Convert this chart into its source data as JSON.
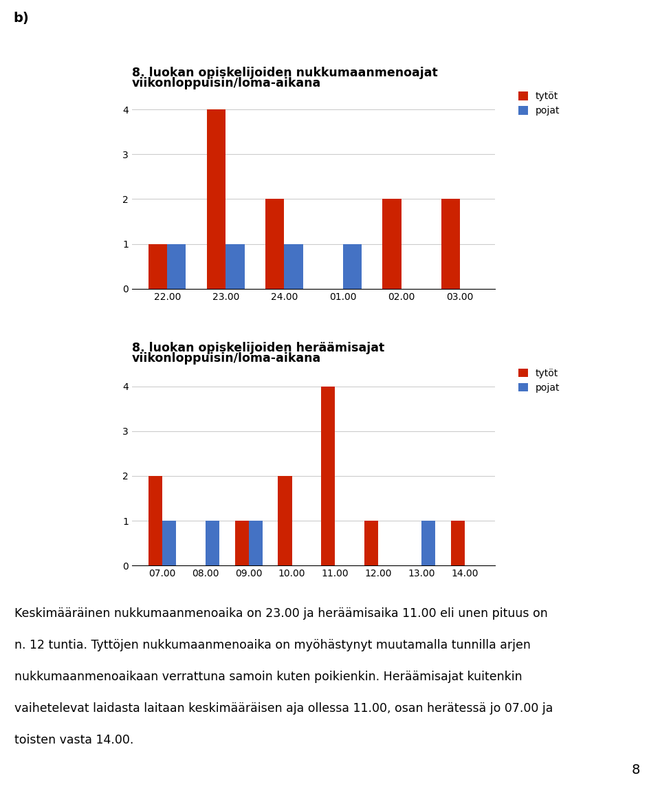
{
  "chart1": {
    "title_line1": "8. luokan opiskelijoiden nukkumaanmenoajat",
    "title_line2": "viikonloppuisin/loma-aikana",
    "categories": [
      "22.00",
      "23.00",
      "24.00",
      "01.00",
      "02.00",
      "03.00"
    ],
    "tytot": [
      1,
      4,
      2,
      0,
      2,
      2
    ],
    "pojat": [
      1,
      1,
      1,
      1,
      0,
      0
    ],
    "ylim": [
      0,
      4.5
    ],
    "yticks": [
      0,
      1,
      2,
      3,
      4
    ]
  },
  "chart2": {
    "title_line1": "8. luokan opiskelijoiden heräämisajat",
    "title_line2": "viikonloppuisin/loma-aikana",
    "categories": [
      "07.00",
      "08.00",
      "09.00",
      "10.00",
      "11.00",
      "12.00",
      "13.00",
      "14.00"
    ],
    "tytot": [
      2,
      0,
      1,
      2,
      4,
      1,
      0,
      1
    ],
    "pojat": [
      1,
      1,
      1,
      0,
      0,
      0,
      1,
      0
    ],
    "ylim": [
      0,
      4.5
    ],
    "yticks": [
      0,
      1,
      2,
      3,
      4
    ]
  },
  "text_lines": [
    "Keskimääräinen nukkumaanmenoaika on 23.00 ja heräämisaika 11.00 eli unen pituus on",
    "n. 12 tuntia. Tyttöjen nukkumaanmenoaika on myöhästynyt muutamalla tunnilla arjen",
    "nukkumaanmenoaikaan verrattuna samoin kuten poikienkin. Heräämisajat kuitenkin",
    "vaihetelevat laidasta laitaan keskimääräisen aja ollessa 11.00, osan herätessä jo 07.00 ja",
    "toisten vasta 14.00."
  ],
  "page_number": "8",
  "label_b": "b)",
  "color_tytot": "#CC2200",
  "color_pojat": "#4472C4",
  "legend_tytot": "tytöt",
  "legend_pojat": "pojat",
  "bar_width": 0.32,
  "title_fontsize": 12.5,
  "tick_fontsize": 10,
  "legend_fontsize": 10,
  "text_fontsize": 12.5,
  "background_color": "#ffffff"
}
